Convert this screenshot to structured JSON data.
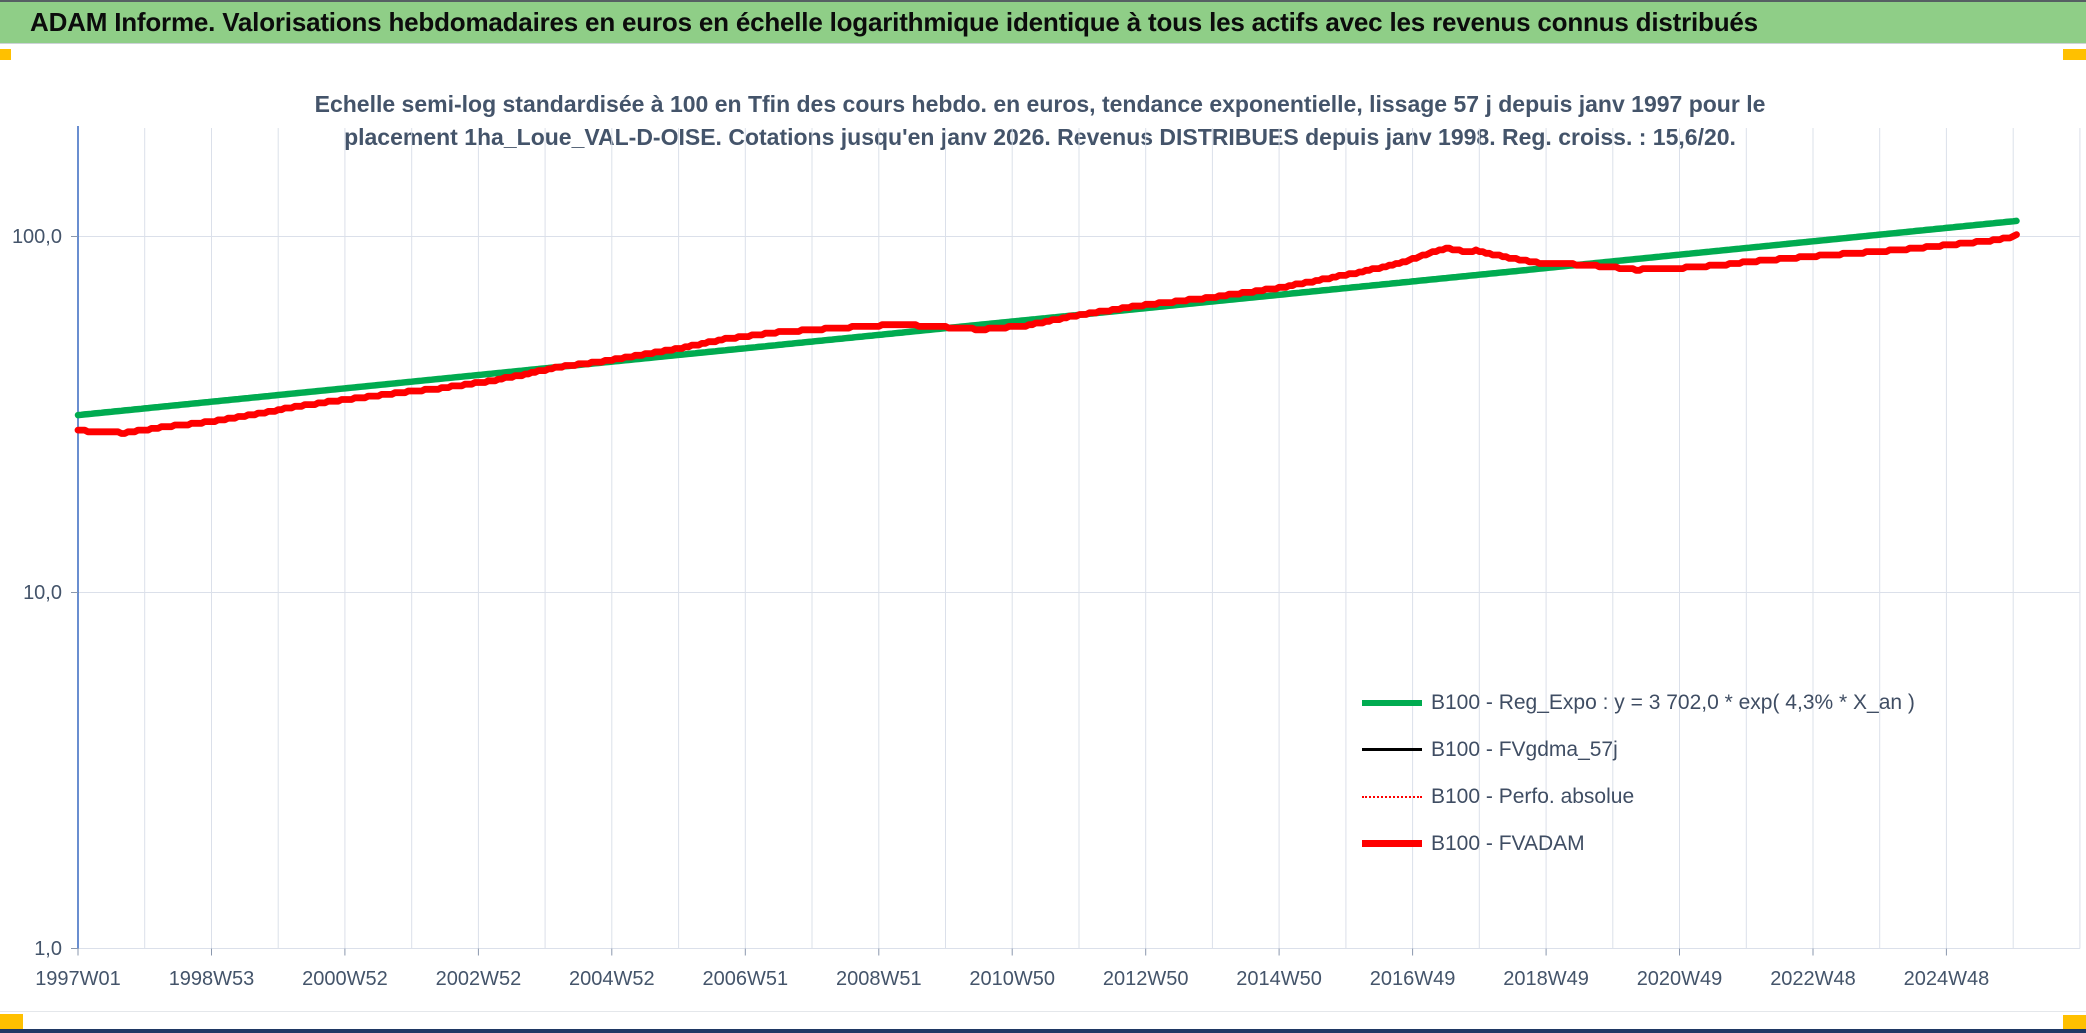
{
  "header": {
    "title": "ADAM Informe. Valorisations hebdomadaires en euros en échelle logarithmique identique à tous les actifs avec les revenus connus distribués"
  },
  "subtitle": {
    "line1": "Echelle semi-log standardisée à 100 en Tfin des cours hebdo. en euros, tendance exponentielle, lissage 57 j depuis janv 1997 pour le",
    "line2": "placement 1ha_Loue_VAL-D-OISE. Cotations jusqu'en janv 2026. Revenus DISTRIBUES depuis janv 1998. Reg. croiss. : 15,6/20."
  },
  "colors": {
    "header_bg": "#8FCE87",
    "accent_yellow": "#FFC000",
    "footer_navy": "#1F3864",
    "series_green": "#00AB50",
    "series_red": "#FE0000",
    "series_black": "#000000",
    "axis_blue": "#4472C4",
    "gridline": "#DBE0EA",
    "chart_text": "#44546A"
  },
  "legend": {
    "items": [
      {
        "label": "B100 - Reg_Expo : y = 3 702,0 * exp( 4,3% *  X_an )",
        "color": "#00AB50",
        "line_style": "solid",
        "thickness": 6
      },
      {
        "label": "B100 - FVgdma_57j",
        "color": "#000000",
        "line_style": "solid",
        "thickness": 3
      },
      {
        "label": "B100 - Perfo. absolue",
        "color": "#FE0000",
        "line_style": "dotted",
        "thickness": 2
      },
      {
        "label": "B100 - FVADAM",
        "color": "#FE0000",
        "line_style": "solid",
        "thickness": 7
      }
    ]
  },
  "chart_data": {
    "type": "line",
    "y_axis": {
      "scale": "log10",
      "ticks": [
        {
          "label": "100,0",
          "value": 100
        },
        {
          "label": "10,0",
          "value": 10
        },
        {
          "label": "1,0",
          "value": 1
        }
      ],
      "range": [
        1,
        200
      ]
    },
    "x_axis": {
      "unit": "ISO week (year W week)",
      "ticks": [
        "1997W01",
        "1998W53",
        "2000W52",
        "2002W52",
        "2004W52",
        "2006W51",
        "2008W51",
        "2010W50",
        "2012W50",
        "2014W50",
        "2016W49",
        "2018W49",
        "2020W49",
        "2022W48",
        "2024W48"
      ],
      "range_years": [
        1997.0,
        2027.0
      ]
    },
    "grid": {
      "vertical_every_years": 1,
      "horizontal_at_values": [
        100,
        10,
        1
      ]
    },
    "series": [
      {
        "name": "B100 - Reg_Expo : y = 3 702,0 * exp( 4,3% *  X_an )",
        "color": "#00AB50",
        "style": "solid",
        "width": 6.5,
        "points": [
          [
            1997.0,
            31.5
          ],
          [
            2026.05,
            110.6
          ]
        ]
      },
      {
        "name": "B100 - FVgdma_57j",
        "color": "#000000",
        "style": "solid",
        "width": 2.6,
        "coincides_with": "B100 - FVADAM",
        "points": []
      },
      {
        "name": "B100 - Perfo. absolue",
        "color": "#FE0000",
        "style": "dotted",
        "width": 2,
        "coincides_with": "B100 - FVADAM",
        "points": []
      },
      {
        "name": "B100 - FVADAM",
        "color": "#FE0000",
        "style": "solid",
        "width": 6.8,
        "points": [
          [
            1997.0,
            28.6
          ],
          [
            1997.25,
            28.2
          ],
          [
            1997.7,
            28.1
          ],
          [
            1998.3,
            29.2
          ],
          [
            1999.0,
            30.2
          ],
          [
            1999.7,
            31.8
          ],
          [
            2000.4,
            33.6
          ],
          [
            2001.0,
            34.8
          ],
          [
            2001.7,
            36.2
          ],
          [
            2002.4,
            37.4
          ],
          [
            2003.0,
            38.8
          ],
          [
            2003.6,
            40.6
          ],
          [
            2004.2,
            43.0
          ],
          [
            2005.0,
            45.0
          ],
          [
            2006.0,
            48.5
          ],
          [
            2006.7,
            51.5
          ],
          [
            2007.5,
            53.8
          ],
          [
            2008.3,
            55.2
          ],
          [
            2009.3,
            56.6
          ],
          [
            2009.9,
            55.8
          ],
          [
            2010.55,
            54.8
          ],
          [
            2011.2,
            56.2
          ],
          [
            2011.96,
            60.0
          ],
          [
            2013.0,
            64.3
          ],
          [
            2014.0,
            67.5
          ],
          [
            2015.0,
            71.7
          ],
          [
            2016.0,
            78.0
          ],
          [
            2016.7,
            83.0
          ],
          [
            2017.2,
            89.0
          ],
          [
            2017.5,
            92.8
          ],
          [
            2017.8,
            90.6
          ],
          [
            2017.95,
            91.2
          ],
          [
            2018.4,
            87.5
          ],
          [
            2018.9,
            84.2
          ],
          [
            2019.6,
            83.3
          ],
          [
            2020.35,
            80.7
          ],
          [
            2020.9,
            81.3
          ],
          [
            2021.6,
            83.0
          ],
          [
            2022.1,
            85.2
          ],
          [
            2023.0,
            88.0
          ],
          [
            2024.3,
            91.7
          ],
          [
            2025.0,
            94.5
          ],
          [
            2025.6,
            97.0
          ],
          [
            2025.95,
            99.5
          ],
          [
            2026.05,
            100.8
          ]
        ]
      }
    ]
  }
}
